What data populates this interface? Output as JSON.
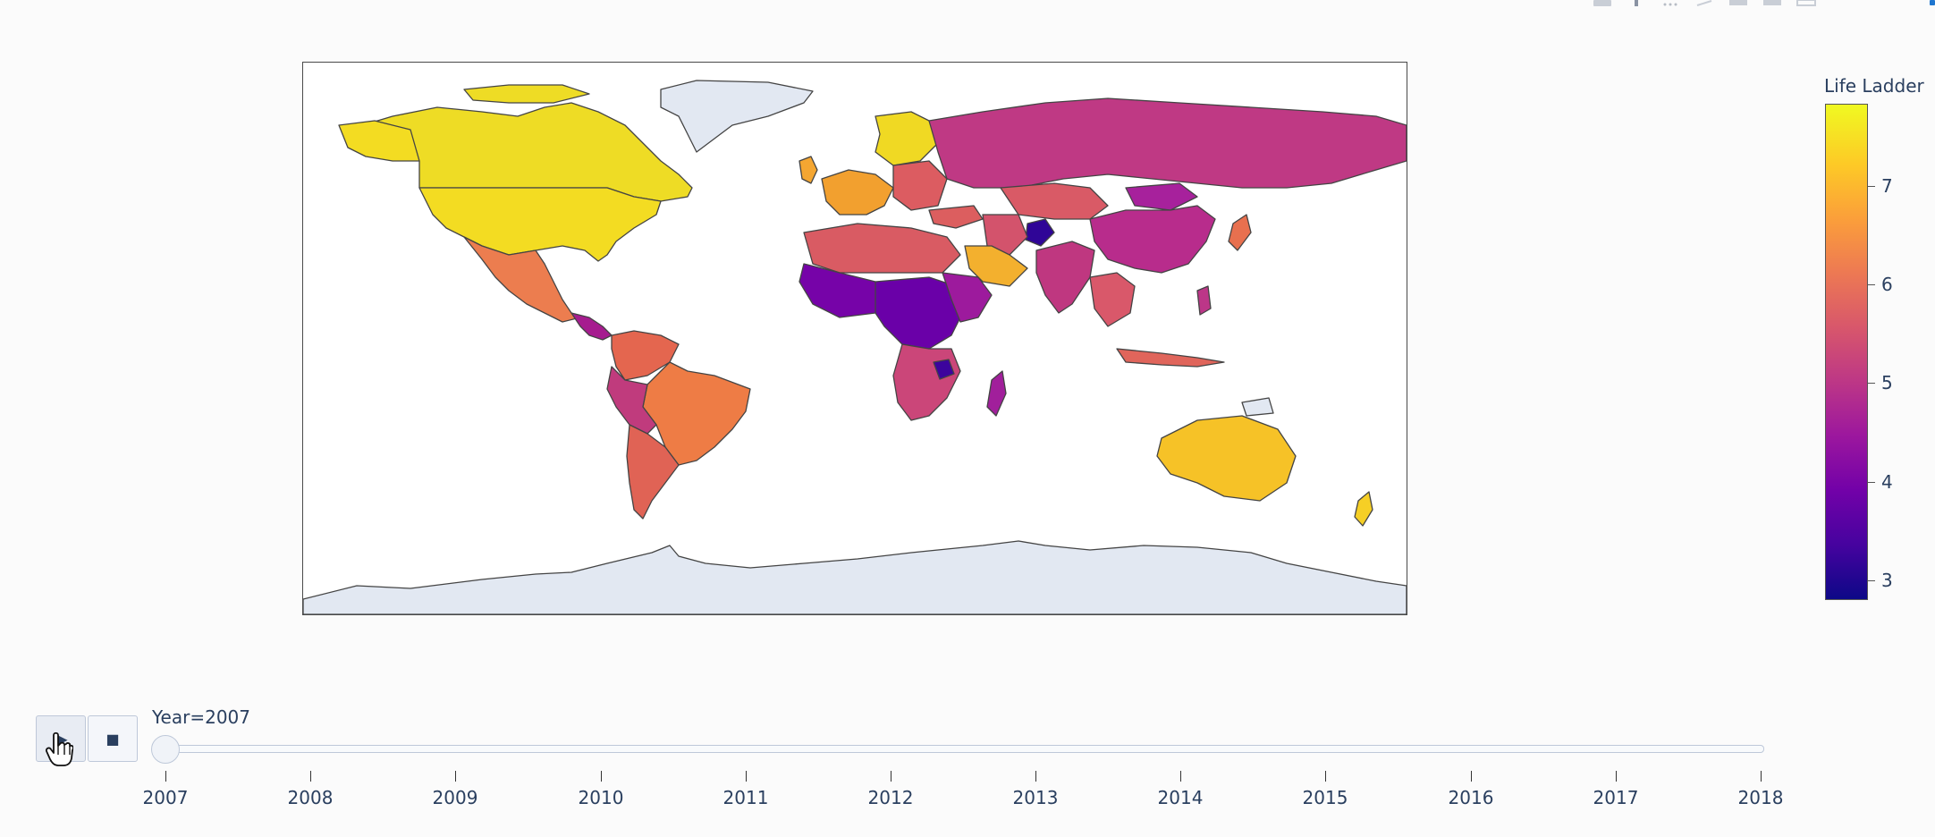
{
  "colorbar": {
    "title": "Life Ladder",
    "ticks": [
      "7",
      "6",
      "5",
      "4",
      "3"
    ],
    "colorscale": [
      "#0d0887",
      "#46039f",
      "#7201a8",
      "#9c179e",
      "#bd3786",
      "#d8576b",
      "#ed7953",
      "#fb9f3a",
      "#fdca26",
      "#f0f921"
    ],
    "range": [
      2.8,
      7.85
    ]
  },
  "animation": {
    "current_label": "Year=2007",
    "play_icon": "play-icon",
    "stop_icon": "stop-icon",
    "years": [
      "2007",
      "2008",
      "2009",
      "2010",
      "2011",
      "2012",
      "2013",
      "2014",
      "2015",
      "2016",
      "2017",
      "2018"
    ],
    "active_index": 0
  },
  "map": {
    "projection": "equirectangular",
    "no_data_color": "#e2e8f2",
    "ocean_color": "#ffffff",
    "border_color": "#444444"
  }
}
